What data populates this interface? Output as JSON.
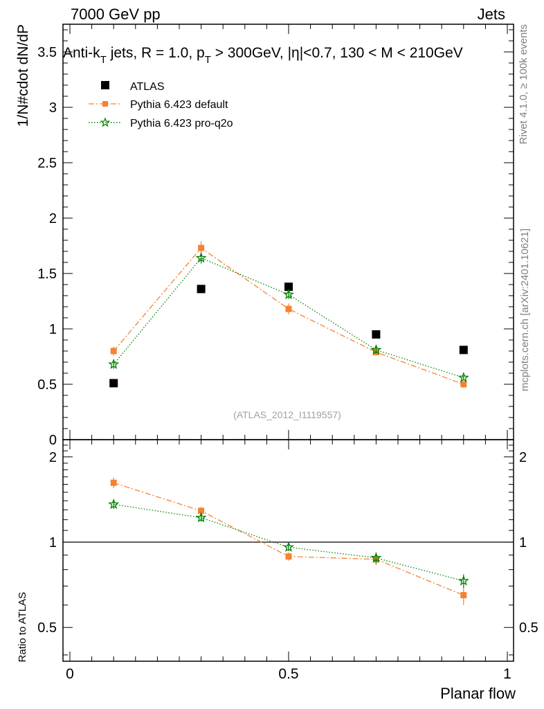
{
  "header": {
    "left": "7000 GeV pp",
    "right": "Jets"
  },
  "side_labels": {
    "rivet": "Rivet 4.1.0, ≥ 100k events",
    "mcplots": "mcplots.cern.ch [arXiv:2401.10621]"
  },
  "chart_data": {
    "type": "scatter",
    "title_parts": {
      "a": "Anti-k",
      "a_sub": "T",
      "b": " jets, R = 1.0, p",
      "b_sub": "T",
      "c": " > 300GeV, |η|<0.7, 130 < M < 210GeV"
    },
    "watermark": "(ATLAS_2012_I1119557)",
    "xlabel": "Planar flow",
    "ylabel": "1/N#cdot dN/dP",
    "ratio_ylabel": "Ratio to ATLAS",
    "xlim": [
      0,
      1
    ],
    "ylim": [
      0,
      3.75
    ],
    "ratio_ylim": [
      0.38,
      2.3
    ],
    "x_ticks": [
      {
        "value": 0,
        "label": "0"
      },
      {
        "value": 0.5,
        "label": "0.5"
      },
      {
        "value": 1,
        "label": "1"
      }
    ],
    "y_ticks": [
      {
        "value": 0,
        "label": "0"
      },
      {
        "value": 0.5,
        "label": "0.5"
      },
      {
        "value": 1,
        "label": "1"
      },
      {
        "value": 1.5,
        "label": "1.5"
      },
      {
        "value": 2,
        "label": "2"
      },
      {
        "value": 2.5,
        "label": "2.5"
      },
      {
        "value": 3,
        "label": "3"
      },
      {
        "value": 3.5,
        "label": "3.5"
      }
    ],
    "ratio_y_ticks": [
      {
        "value": 0.5,
        "label": "0.5"
      },
      {
        "value": 1,
        "label": "1"
      },
      {
        "value": 2,
        "label": "2"
      }
    ],
    "x": [
      0.1,
      0.3,
      0.5,
      0.7,
      0.9
    ],
    "series": [
      {
        "name": "ATLAS",
        "marker": "square",
        "color": "#000000",
        "values": [
          0.51,
          1.36,
          1.38,
          0.95,
          0.81
        ],
        "errors": [
          0,
          0,
          0,
          0,
          0
        ],
        "ratio": [
          1,
          1,
          1,
          1,
          1
        ]
      },
      {
        "name": "Pythia 6.423 default",
        "marker": "square-small",
        "line": "dashdot",
        "color": "#f58233",
        "values": [
          0.8,
          1.73,
          1.18,
          0.79,
          0.5
        ],
        "errors": [
          0.04,
          0.06,
          0.05,
          0.03,
          0.03
        ],
        "ratio": [
          1.62,
          1.29,
          0.89,
          0.87,
          0.65
        ],
        "ratio_errors": [
          0.07,
          0.04,
          0.03,
          0.04,
          0.05
        ]
      },
      {
        "name": "Pythia 6.423 pro-q2o",
        "marker": "star",
        "line": "dotted",
        "color": "#008000",
        "values": [
          0.68,
          1.64,
          1.31,
          0.81,
          0.56
        ],
        "errors": [
          0.04,
          0.05,
          0.04,
          0.03,
          0.02
        ],
        "ratio": [
          1.36,
          1.22,
          0.96,
          0.88,
          0.73
        ],
        "ratio_errors": [
          0.05,
          0.04,
          0.03,
          0.04,
          0.04
        ]
      }
    ]
  }
}
